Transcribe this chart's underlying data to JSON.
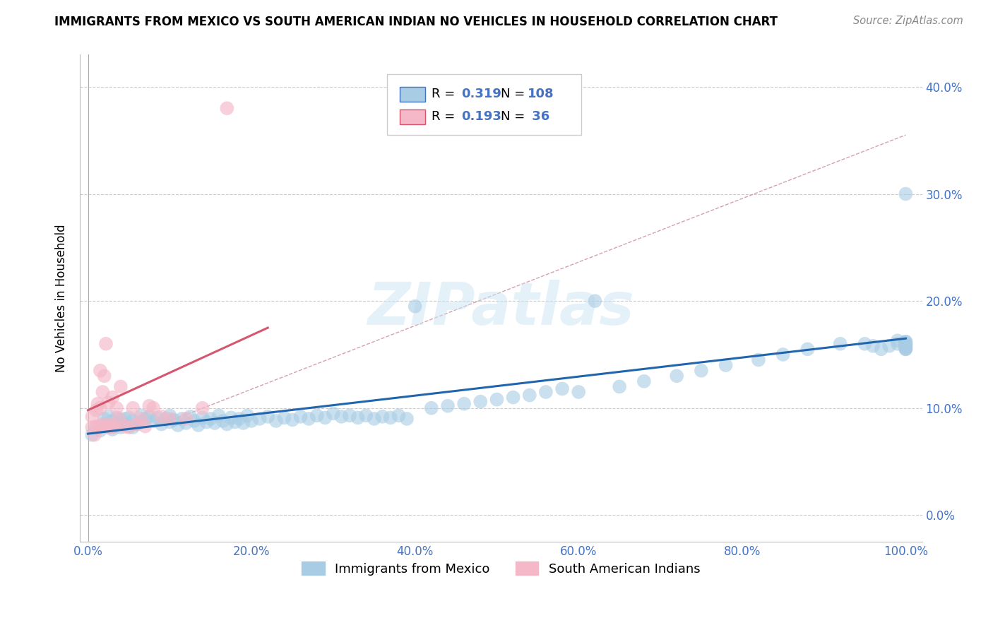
{
  "title": "IMMIGRANTS FROM MEXICO VS SOUTH AMERICAN INDIAN NO VEHICLES IN HOUSEHOLD CORRELATION CHART",
  "source": "Source: ZipAtlas.com",
  "ylabel": "No Vehicles in Household",
  "xlabel": "",
  "xlim": [
    -0.01,
    1.02
  ],
  "ylim": [
    -0.025,
    0.43
  ],
  "yticks": [
    0.0,
    0.1,
    0.2,
    0.3,
    0.4
  ],
  "ytick_labels": [
    "0.0%",
    "10.0%",
    "20.0%",
    "30.0%",
    "40.0%"
  ],
  "xticks": [
    0.0,
    0.2,
    0.4,
    0.6,
    0.8,
    1.0
  ],
  "xtick_labels": [
    "0.0%",
    "20.0%",
    "40.0%",
    "60.0%",
    "80.0%",
    "100.0%"
  ],
  "blue_color": "#a8cce4",
  "pink_color": "#f4b8c8",
  "blue_line_color": "#2166ac",
  "pink_line_color": "#d6566e",
  "grid_color": "#cccccc",
  "watermark": "ZIPatlas",
  "legend_label1": "Immigrants from Mexico",
  "legend_label2": "South American Indians",
  "blue_scatter_x": [
    0.005,
    0.01,
    0.015,
    0.02,
    0.02,
    0.025,
    0.025,
    0.03,
    0.03,
    0.035,
    0.035,
    0.04,
    0.04,
    0.045,
    0.045,
    0.05,
    0.05,
    0.055,
    0.055,
    0.06,
    0.065,
    0.065,
    0.07,
    0.075,
    0.08,
    0.085,
    0.09,
    0.095,
    0.1,
    0.1,
    0.105,
    0.11,
    0.115,
    0.12,
    0.125,
    0.13,
    0.135,
    0.14,
    0.145,
    0.15,
    0.155,
    0.16,
    0.165,
    0.17,
    0.175,
    0.18,
    0.185,
    0.19,
    0.195,
    0.2,
    0.21,
    0.22,
    0.23,
    0.24,
    0.25,
    0.26,
    0.27,
    0.28,
    0.29,
    0.3,
    0.31,
    0.32,
    0.33,
    0.34,
    0.35,
    0.36,
    0.37,
    0.38,
    0.39,
    0.4,
    0.42,
    0.44,
    0.46,
    0.48,
    0.5,
    0.52,
    0.54,
    0.56,
    0.58,
    0.6,
    0.62,
    0.65,
    0.68,
    0.72,
    0.75,
    0.78,
    0.82,
    0.85,
    0.88,
    0.92,
    0.95,
    0.96,
    0.97,
    0.98,
    0.99,
    0.99,
    1.0,
    1.0,
    1.0,
    1.0,
    1.0,
    1.0,
    1.0,
    1.0,
    1.0,
    1.0,
    1.0,
    1.0
  ],
  "blue_scatter_y": [
    0.075,
    0.082,
    0.079,
    0.085,
    0.09,
    0.083,
    0.092,
    0.08,
    0.088,
    0.085,
    0.091,
    0.082,
    0.089,
    0.084,
    0.09,
    0.083,
    0.091,
    0.082,
    0.088,
    0.085,
    0.087,
    0.093,
    0.09,
    0.092,
    0.088,
    0.091,
    0.085,
    0.09,
    0.087,
    0.093,
    0.089,
    0.084,
    0.09,
    0.086,
    0.092,
    0.088,
    0.084,
    0.091,
    0.087,
    0.09,
    0.086,
    0.093,
    0.088,
    0.085,
    0.091,
    0.087,
    0.09,
    0.086,
    0.093,
    0.088,
    0.09,
    0.092,
    0.088,
    0.091,
    0.089,
    0.092,
    0.09,
    0.093,
    0.091,
    0.095,
    0.092,
    0.093,
    0.091,
    0.093,
    0.09,
    0.092,
    0.091,
    0.093,
    0.09,
    0.195,
    0.1,
    0.102,
    0.104,
    0.106,
    0.108,
    0.11,
    0.112,
    0.115,
    0.118,
    0.115,
    0.2,
    0.12,
    0.125,
    0.13,
    0.135,
    0.14,
    0.145,
    0.15,
    0.155,
    0.16,
    0.16,
    0.158,
    0.155,
    0.158,
    0.16,
    0.163,
    0.155,
    0.157,
    0.16,
    0.162,
    0.158,
    0.155,
    0.3,
    0.16,
    0.162,
    0.158,
    0.156,
    0.16
  ],
  "pink_scatter_x": [
    0.005,
    0.005,
    0.008,
    0.01,
    0.01,
    0.012,
    0.013,
    0.015,
    0.015,
    0.018,
    0.018,
    0.02,
    0.02,
    0.022,
    0.025,
    0.025,
    0.028,
    0.03,
    0.03,
    0.033,
    0.035,
    0.038,
    0.04,
    0.045,
    0.05,
    0.055,
    0.06,
    0.065,
    0.07,
    0.075,
    0.08,
    0.09,
    0.1,
    0.12,
    0.14,
    0.17
  ],
  "pink_scatter_y": [
    0.082,
    0.092,
    0.075,
    0.083,
    0.098,
    0.104,
    0.082,
    0.1,
    0.135,
    0.085,
    0.115,
    0.082,
    0.13,
    0.16,
    0.082,
    0.105,
    0.085,
    0.082,
    0.11,
    0.083,
    0.1,
    0.09,
    0.12,
    0.083,
    0.082,
    0.1,
    0.085,
    0.09,
    0.083,
    0.102,
    0.1,
    0.092,
    0.09,
    0.09,
    0.1,
    0.38
  ],
  "blue_trendline_x": [
    0.0,
    1.0
  ],
  "blue_trendline_y": [
    0.076,
    0.165
  ],
  "pink_trendline_x": [
    0.0,
    0.22
  ],
  "pink_trendline_y": [
    0.098,
    0.175
  ],
  "dashed_line_x": [
    0.08,
    1.0
  ],
  "dashed_line_y": [
    0.082,
    0.355
  ]
}
